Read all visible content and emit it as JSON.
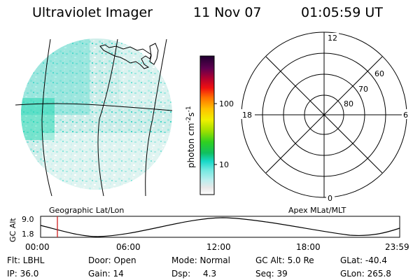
{
  "header": {
    "instrument": "Ultraviolet Imager",
    "date": "11 Nov 07",
    "time": "01:05:59 UT"
  },
  "colorbar": {
    "label": "photon cm",
    "label_sup1": "-2",
    "label_s": "s",
    "label_sup2": "-1",
    "ticks": [
      "100",
      "10"
    ]
  },
  "polar": {
    "mlt_top": "12",
    "mlt_bottom": "0",
    "mlt_left": "18",
    "mlt_right": "6",
    "lat_60": "60",
    "lat_70": "70",
    "lat_80": "80"
  },
  "map_labels": {
    "left": "Geographic Lat/Lon",
    "right": "Apex MLat/MLT"
  },
  "altitude_plot": {
    "ylabel": "GC Alt",
    "ytick_top": "9.0",
    "ytick_bottom": "1.8",
    "xticks": [
      "00:00",
      "06:00",
      "12:00",
      "18:00",
      "23:59"
    ],
    "marker_time": "01:05:59"
  },
  "status": {
    "flt": "Flt: LBHL",
    "door": "Door: Open",
    "mode": "Mode: Normal",
    "gcalt": "GC Alt: 5.0 Re",
    "glat": "GLat: -40.4",
    "ip": "IP: 36.0",
    "gain": "Gain: 14",
    "dsp_label": "Dsp:",
    "dsp_value": "4.3",
    "seq": "Seq: 39",
    "glon": "GLon: 265.8"
  },
  "colors": {
    "image_main": "#9ee8e0",
    "image_bright": "#18d8c0",
    "image_low": "#e6f0ee",
    "marker": "#d02020"
  }
}
